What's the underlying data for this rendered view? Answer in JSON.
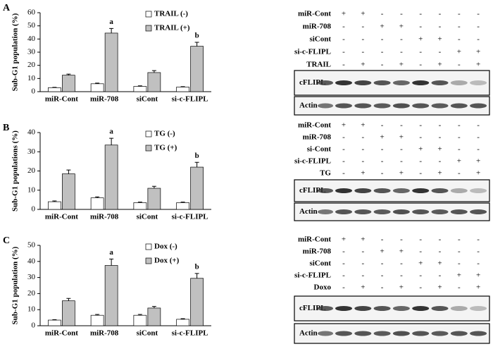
{
  "chart_data": [
    {
      "type": "bar",
      "panel": "A",
      "ylabel": "Sub-G1 population (%)",
      "categories": [
        "miR-Cont",
        "miR-708",
        "siCont",
        "si-c-FLIPL"
      ],
      "ylim": [
        0,
        60
      ],
      "yticks": [
        0,
        10,
        20,
        30,
        40,
        50,
        60
      ],
      "series": [
        {
          "name": "TRAIL (-)",
          "color": "#ffffff",
          "values": [
            3,
            6,
            4,
            3.5
          ],
          "errors": [
            0.3,
            0.5,
            0.4,
            0.3
          ]
        },
        {
          "name": "TRAIL (+)",
          "color": "#c0c0c0",
          "values": [
            12.5,
            44.5,
            14.5,
            34.5
          ],
          "errors": [
            0.8,
            3.5,
            1.5,
            3
          ]
        }
      ],
      "annotations": [
        {
          "text": "a",
          "category": "miR-708"
        },
        {
          "text": "b",
          "category": "si-c-FLIPL"
        }
      ]
    },
    {
      "type": "bar",
      "panel": "B",
      "ylabel": "Sub-G1 populations (%)",
      "categories": [
        "miR-Cont",
        "miR-708",
        "siCont",
        "si-c-FLIPL"
      ],
      "ylim": [
        0,
        40
      ],
      "yticks": [
        0,
        10,
        20,
        30,
        40
      ],
      "series": [
        {
          "name": "TG (-)",
          "color": "#ffffff",
          "values": [
            4,
            6,
            3.5,
            3.5
          ],
          "errors": [
            0.4,
            0.5,
            0.3,
            0.3
          ]
        },
        {
          "name": "TG (+)",
          "color": "#c0c0c0",
          "values": [
            18.5,
            33.5,
            11,
            22
          ],
          "errors": [
            2,
            3.5,
            1,
            2.5
          ]
        }
      ],
      "annotations": [
        {
          "text": "a",
          "category": "miR-708"
        },
        {
          "text": "b",
          "category": "si-c-FLIPL"
        }
      ]
    },
    {
      "type": "bar",
      "panel": "C",
      "ylabel": "Sub-G1 population (%)",
      "categories": [
        "miR-Cont",
        "miR-708",
        "siCont",
        "si-c-FLIPL"
      ],
      "ylim": [
        0,
        50
      ],
      "yticks": [
        0,
        10,
        20,
        30,
        40,
        50
      ],
      "series": [
        {
          "name": "Dox (-)",
          "color": "#ffffff",
          "values": [
            3.5,
            6.5,
            6.5,
            4
          ],
          "errors": [
            0.3,
            0.5,
            0.5,
            0.4
          ]
        },
        {
          "name": "Dox (+)",
          "color": "#c0c0c0",
          "values": [
            15.5,
            37.5,
            11,
            29.5
          ],
          "errors": [
            1.5,
            4,
            1,
            3
          ]
        }
      ],
      "annotations": [
        {
          "text": "a",
          "category": "miR-708"
        },
        {
          "text": "b",
          "category": "si-c-FLIPL"
        }
      ]
    }
  ],
  "blots": [
    {
      "rows": [
        {
          "label": "miR-Cont",
          "signs": [
            "+",
            "+",
            "-",
            "-",
            "-",
            "-",
            "-",
            "-"
          ]
        },
        {
          "label": "miR-708",
          "signs": [
            "-",
            "-",
            "+",
            "+",
            "-",
            "-",
            "-",
            "-"
          ]
        },
        {
          "label": "siCont",
          "signs": [
            "-",
            "-",
            "-",
            "-",
            "+",
            "+",
            "-",
            "-"
          ]
        },
        {
          "label": "si-c-FLIPL",
          "signs": [
            "-",
            "-",
            "-",
            "-",
            "-",
            "-",
            "+",
            "+"
          ]
        },
        {
          "label": "TRAIL",
          "signs": [
            "-",
            "+",
            "-",
            "+",
            "-",
            "+",
            "-",
            "+"
          ]
        }
      ],
      "bands": [
        "cFLIPL",
        "Actin"
      ]
    },
    {
      "rows": [
        {
          "label": "miR-Cont",
          "signs": [
            "+",
            "+",
            "-",
            "-",
            "-",
            "-",
            "-",
            "-"
          ]
        },
        {
          "label": "miR-708",
          "signs": [
            "-",
            "-",
            "+",
            "+",
            "-",
            "-",
            "-",
            "-"
          ]
        },
        {
          "label": "si-Cont",
          "signs": [
            "-",
            "-",
            "-",
            "-",
            "+",
            "+",
            "-",
            "-"
          ]
        },
        {
          "label": "si-c-FLIPL",
          "signs": [
            "-",
            "-",
            "-",
            "-",
            "-",
            "-",
            "+",
            "+"
          ]
        },
        {
          "label": "TG",
          "signs": [
            "-",
            "+",
            "-",
            "+",
            "-",
            "+",
            "-",
            "+"
          ]
        }
      ],
      "bands": [
        "cFLIPL",
        "Actin"
      ]
    },
    {
      "rows": [
        {
          "label": "miR-Cont",
          "signs": [
            "+",
            "+",
            "-",
            "-",
            "-",
            "-",
            "-",
            "-"
          ]
        },
        {
          "label": "miR-708",
          "signs": [
            "-",
            "-",
            "+",
            "+",
            "-",
            "-",
            "-",
            "-"
          ]
        },
        {
          "label": "siCont",
          "signs": [
            "-",
            "-",
            "-",
            "-",
            "+",
            "+",
            "-",
            "-"
          ]
        },
        {
          "label": "si-c-FLIPL",
          "signs": [
            "-",
            "-",
            "-",
            "-",
            "-",
            "-",
            "+",
            "+"
          ]
        },
        {
          "label": "Doxo",
          "signs": [
            "-",
            "+",
            "-",
            "+",
            "-",
            "+",
            "-",
            "+"
          ]
        }
      ],
      "bands": [
        "cFLIPL",
        "Actin"
      ]
    }
  ]
}
